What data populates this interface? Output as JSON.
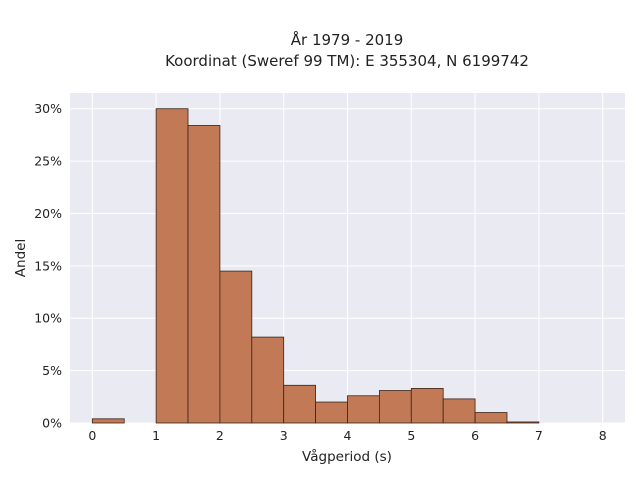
{
  "chart_data": {
    "type": "bar",
    "title_lines": [
      "År 1979 - 2019",
      "Koordinat (Sweref 99 TM): E 355304, N 6199742"
    ],
    "xlabel": "Vågperiod (s)",
    "ylabel": "Andel",
    "xlim": [
      -0.35,
      8.35
    ],
    "ylim": [
      0,
      0.315
    ],
    "xticks": [
      0,
      1,
      2,
      3,
      4,
      5,
      6,
      7,
      8
    ],
    "xtick_labels": [
      "0",
      "1",
      "2",
      "3",
      "4",
      "5",
      "6",
      "7",
      "8"
    ],
    "yticks": [
      0,
      0.05,
      0.1,
      0.15,
      0.2,
      0.25,
      0.3
    ],
    "ytick_labels": [
      "0%",
      "5%",
      "10%",
      "15%",
      "20%",
      "25%",
      "30%"
    ],
    "bin_width": 0.5,
    "bins": [
      {
        "x": 0.0,
        "value": 0.004
      },
      {
        "x": 0.5,
        "value": 0.0
      },
      {
        "x": 1.0,
        "value": 0.3
      },
      {
        "x": 1.5,
        "value": 0.284
      },
      {
        "x": 2.0,
        "value": 0.145
      },
      {
        "x": 2.5,
        "value": 0.082
      },
      {
        "x": 3.0,
        "value": 0.036
      },
      {
        "x": 3.5,
        "value": 0.02
      },
      {
        "x": 4.0,
        "value": 0.026
      },
      {
        "x": 4.5,
        "value": 0.031
      },
      {
        "x": 5.0,
        "value": 0.033
      },
      {
        "x": 5.5,
        "value": 0.023
      },
      {
        "x": 6.0,
        "value": 0.01
      },
      {
        "x": 6.5,
        "value": 0.001
      }
    ],
    "grid": true,
    "colors": {
      "bar_fill": "#c17a55",
      "bar_edge": "#3a2418",
      "plot_background": "#eaeaf2",
      "grid": "#ffffff"
    }
  }
}
